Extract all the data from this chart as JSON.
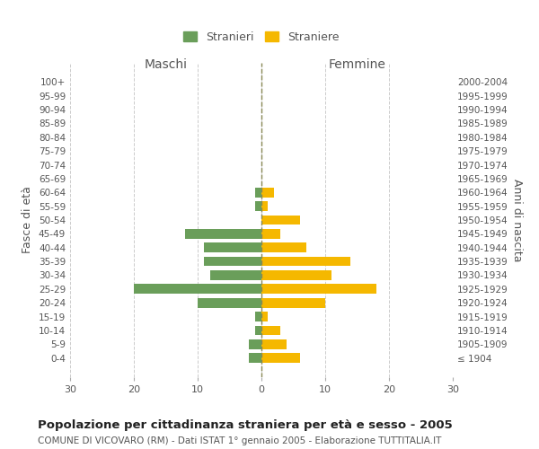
{
  "age_groups": [
    "100+",
    "95-99",
    "90-94",
    "85-89",
    "80-84",
    "75-79",
    "70-74",
    "65-69",
    "60-64",
    "55-59",
    "50-54",
    "45-49",
    "40-44",
    "35-39",
    "30-34",
    "25-29",
    "20-24",
    "15-19",
    "10-14",
    "5-9",
    "0-4"
  ],
  "birth_years": [
    "≤ 1904",
    "1905-1909",
    "1910-1914",
    "1915-1919",
    "1920-1924",
    "1925-1929",
    "1930-1934",
    "1935-1939",
    "1940-1944",
    "1945-1949",
    "1950-1954",
    "1955-1959",
    "1960-1964",
    "1965-1969",
    "1970-1974",
    "1975-1979",
    "1980-1984",
    "1985-1989",
    "1990-1994",
    "1995-1999",
    "2000-2004"
  ],
  "males": [
    0,
    0,
    0,
    0,
    0,
    0,
    0,
    0,
    1,
    1,
    0,
    12,
    9,
    9,
    8,
    20,
    10,
    1,
    1,
    2,
    2
  ],
  "females": [
    0,
    0,
    0,
    0,
    0,
    0,
    0,
    0,
    2,
    1,
    6,
    3,
    7,
    14,
    11,
    18,
    10,
    1,
    3,
    4,
    6
  ],
  "male_color": "#6a9e5a",
  "female_color": "#f5b800",
  "title": "Popolazione per cittadinanza straniera per età e sesso - 2005",
  "subtitle": "COMUNE DI VICOVARO (RM) - Dati ISTAT 1° gennaio 2005 - Elaborazione TUTTITALIA.IT",
  "xlabel_left": "Maschi",
  "xlabel_right": "Femmine",
  "ylabel_left": "Fasce di età",
  "ylabel_right": "Anni di nascita",
  "legend_male": "Stranieri",
  "legend_female": "Straniere",
  "xlim": 30,
  "background_color": "#ffffff",
  "grid_color": "#cccccc"
}
